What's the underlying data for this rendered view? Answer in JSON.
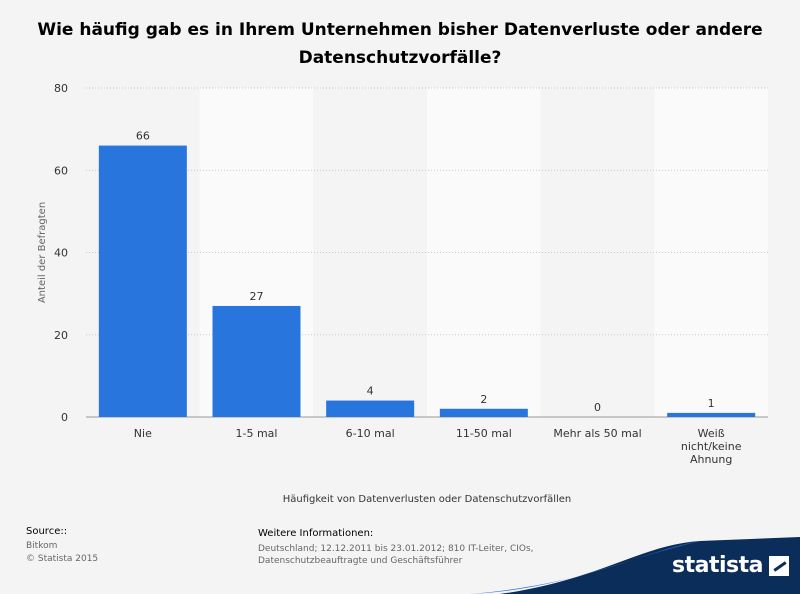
{
  "title": "Wie häufig gab es in Ihrem Unternehmen bisher Datenverluste oder andere Datenschutzvorfälle?",
  "chart_data": {
    "type": "bar",
    "categories": [
      "Nie",
      "1-5 mal",
      "6-10 mal",
      "11-50 mal",
      "Mehr als 50 mal",
      "Weiß nicht/keine Ahnung"
    ],
    "values": [
      66,
      27,
      4,
      2,
      0,
      1
    ],
    "xlabel": "Häufigkeit von Datenverlusten oder Datenschutzvorfällen",
    "ylabel": "Anteil der Befragten",
    "ylim": [
      0,
      80
    ],
    "yticks": [
      0,
      20,
      40,
      60,
      80
    ],
    "grid": true,
    "bar_color": "#2876dd"
  },
  "source": {
    "heading": "Source::",
    "lines": [
      "Bitkom",
      "© Statista 2015"
    ]
  },
  "info": {
    "heading": "Weitere Informationen:",
    "text": "Deutschland; 12.12.2011 bis 23.01.2012; 810 IT-Leiter, CIOs, Datenschutzbeauftragte und Geschäftsführer"
  },
  "logo": {
    "text": "statista",
    "icon": "statista-logo-icon"
  }
}
